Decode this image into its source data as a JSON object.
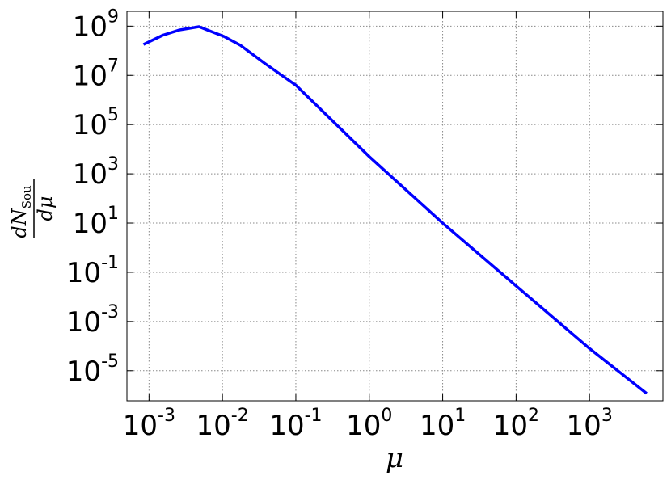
{
  "chart_data": {
    "type": "line",
    "xlabel": "μ",
    "ylabel": {
      "numerator": "dN",
      "subscript": "Sou",
      "denominator": "dμ"
    },
    "x": [
      0.00084,
      0.00155,
      0.0026,
      0.0048,
      0.0105,
      0.0174,
      0.037,
      0.1,
      1,
      10,
      100,
      1000,
      6000
    ],
    "series": [
      {
        "name": "dN/dμ",
        "color": "#0000ff",
        "values": [
          180000000,
          430000000,
          700000000,
          950000000,
          380000000,
          170000000,
          32000000,
          4000000,
          5000,
          10,
          0.028,
          8e-05,
          1.2e-06
        ]
      }
    ],
    "xscale": "log",
    "yscale": "log",
    "xlim": [
      0.0005,
      10000
    ],
    "ylim": [
      6e-07,
      4000000000
    ],
    "xticks": [
      {
        "value": 0.001,
        "label": "10",
        "exponent": "-3"
      },
      {
        "value": 0.01,
        "label": "10",
        "exponent": "-2"
      },
      {
        "value": 0.1,
        "label": "10",
        "exponent": "-1"
      },
      {
        "value": 1,
        "label": "10",
        "exponent": "0"
      },
      {
        "value": 10,
        "label": "10",
        "exponent": "1"
      },
      {
        "value": 100,
        "label": "10",
        "exponent": "2"
      },
      {
        "value": 1000,
        "label": "10",
        "exponent": "3"
      }
    ],
    "yticks": [
      {
        "value": 1000000000,
        "label": "10",
        "exponent": "9"
      },
      {
        "value": 10000000,
        "label": "10",
        "exponent": "7"
      },
      {
        "value": 100000,
        "label": "10",
        "exponent": "5"
      },
      {
        "value": 1000,
        "label": "10",
        "exponent": "3"
      },
      {
        "value": 10,
        "label": "10",
        "exponent": "1"
      },
      {
        "value": 0.1,
        "label": "10",
        "exponent": "-1"
      },
      {
        "value": 0.001,
        "label": "10",
        "exponent": "-3"
      },
      {
        "value": 1e-05,
        "label": "10",
        "exponent": "-5"
      }
    ],
    "grid": true
  }
}
